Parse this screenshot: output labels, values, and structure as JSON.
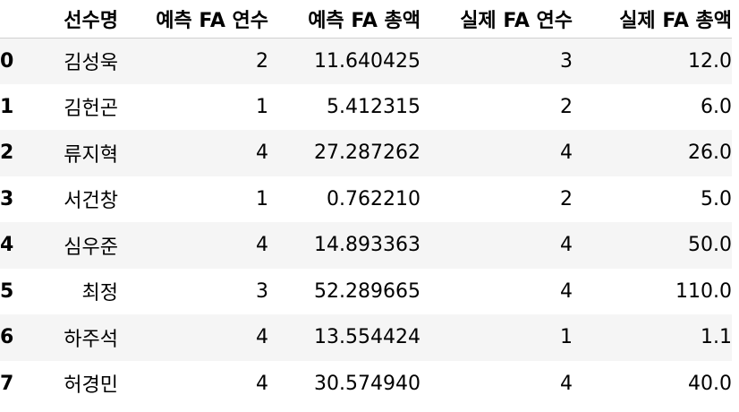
{
  "table": {
    "columns": [
      "",
      "선수명",
      "예측 FA 연수",
      "예측 FA 총액",
      "실제 FA 연수",
      "실제 FA 총액"
    ],
    "rows": [
      {
        "index": "0",
        "name": "김성욱",
        "pred_years": "2",
        "pred_total": "11.640425",
        "actual_years": "3",
        "actual_total": "12.0"
      },
      {
        "index": "1",
        "name": "김헌곤",
        "pred_years": "1",
        "pred_total": "5.412315",
        "actual_years": "2",
        "actual_total": "6.0"
      },
      {
        "index": "2",
        "name": "류지혁",
        "pred_years": "4",
        "pred_total": "27.287262",
        "actual_years": "4",
        "actual_total": "26.0"
      },
      {
        "index": "3",
        "name": "서건창",
        "pred_years": "1",
        "pred_total": "0.762210",
        "actual_years": "2",
        "actual_total": "5.0"
      },
      {
        "index": "4",
        "name": "심우준",
        "pred_years": "4",
        "pred_total": "14.893363",
        "actual_years": "4",
        "actual_total": "50.0"
      },
      {
        "index": "5",
        "name": "최정",
        "pred_years": "3",
        "pred_total": "52.289665",
        "actual_years": "4",
        "actual_total": "110.0"
      },
      {
        "index": "6",
        "name": "하주석",
        "pred_years": "4",
        "pred_total": "13.554424",
        "actual_years": "1",
        "actual_total": "1.1"
      },
      {
        "index": "7",
        "name": "허경민",
        "pred_years": "4",
        "pred_total": "30.574940",
        "actual_years": "4",
        "actual_total": "40.0"
      }
    ]
  }
}
